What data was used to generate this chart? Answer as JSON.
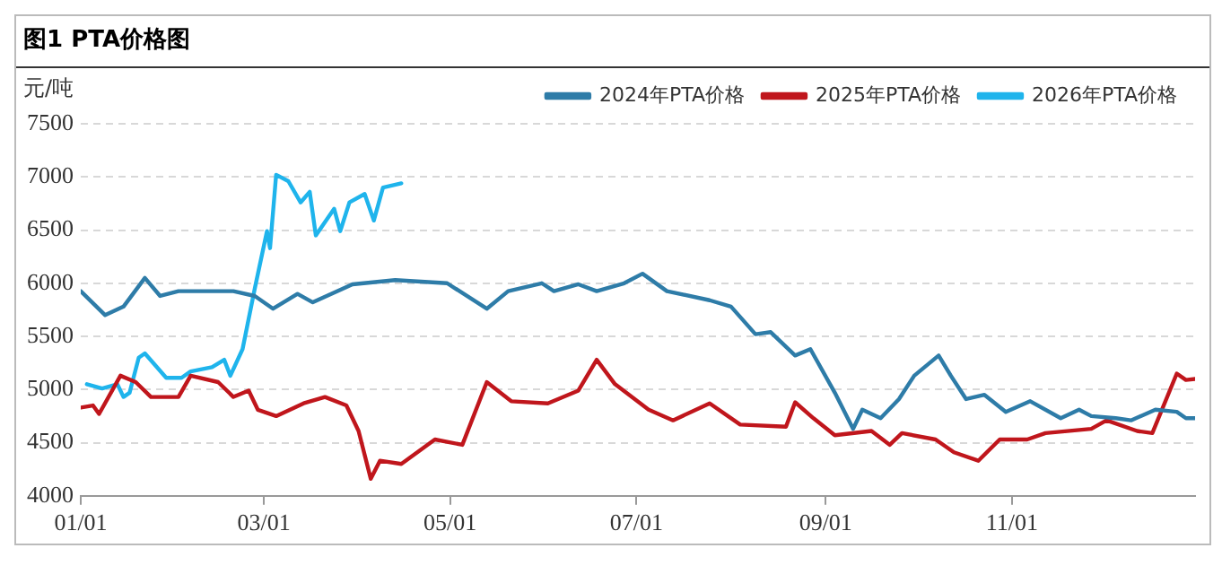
{
  "chart_data": {
    "type": "line",
    "title": "图1 PTA价格图",
    "ylabel": "元/吨",
    "xlim": [
      "--01-01",
      "--12-31"
    ],
    "xticks": [
      {
        "value": "--01-01",
        "label": "01/01"
      },
      {
        "value": "--03-01",
        "label": "03/01"
      },
      {
        "value": "--05-01",
        "label": "05/01"
      },
      {
        "value": "--07-01",
        "label": "07/01"
      },
      {
        "value": "--09-01",
        "label": "09/01"
      },
      {
        "value": "--11-01",
        "label": "11/01"
      }
    ],
    "ylim": [
      4000,
      7500
    ],
    "yticks": [
      4000,
      4500,
      5000,
      5500,
      6000,
      6500,
      7000,
      7500
    ],
    "grid": "y",
    "legend": "top right",
    "marker": "none",
    "line_style": "solid",
    "series": [
      {
        "name": "2024年PTA价格",
        "color": "#2e7ca8",
        "x": [
          "--01-01",
          "--01-09",
          "--01-15",
          "--01-22",
          "--01-27",
          "--02-02",
          "--02-12",
          "--02-20",
          "--02-27",
          "--03-04",
          "--03-12",
          "--03-17",
          "--03-30",
          "--04-13",
          "--04-30",
          "--05-13",
          "--05-20",
          "--05-31",
          "--06-04",
          "--06-12",
          "--06-18",
          "--06-27",
          "--07-03",
          "--07-11",
          "--07-25",
          "--08-01",
          "--08-09",
          "--08-14",
          "--08-22",
          "--08-27",
          "--09-04",
          "--09-10",
          "--09-13",
          "--09-19",
          "--09-25",
          "--09-30",
          "--10-08",
          "--10-12",
          "--10-17",
          "--10-23",
          "--10-30",
          "--11-07",
          "--11-17",
          "--11-23",
          "--11-27",
          "--12-05",
          "--12-10",
          "--12-18",
          "--12-25",
          "--12-28",
          "--12-31"
        ],
        "values": [
          5925,
          5700,
          5780,
          6050,
          5880,
          5925,
          5925,
          5925,
          5880,
          5760,
          5900,
          5820,
          5990,
          6030,
          6000,
          5760,
          5925,
          6000,
          5925,
          5990,
          5925,
          6000,
          6090,
          5925,
          5840,
          5780,
          5520,
          5540,
          5320,
          5380,
          4970,
          4630,
          4810,
          4730,
          4910,
          5130,
          5320,
          5130,
          4910,
          4950,
          4790,
          4890,
          4730,
          4810,
          4750,
          4730,
          4710,
          4810,
          4790,
          4730,
          4730
        ]
      },
      {
        "name": "2025年PTA价格",
        "color": "#c0161c",
        "x": [
          "--01-01",
          "--01-05",
          "--01-07",
          "--01-14",
          "--01-19",
          "--01-24",
          "--02-02",
          "--02-06",
          "--02-15",
          "--02-20",
          "--02-25",
          "--02-28",
          "--03-05",
          "--03-14",
          "--03-21",
          "--03-28",
          "--04-01",
          "--04-05",
          "--04-08",
          "--04-15",
          "--04-26",
          "--05-05",
          "--05-13",
          "--05-21",
          "--06-02",
          "--06-12",
          "--06-18",
          "--06-24",
          "--07-05",
          "--07-13",
          "--07-25",
          "--08-04",
          "--08-19",
          "--08-22",
          "--08-28",
          "--09-04",
          "--09-16",
          "--09-22",
          "--09-26",
          "--10-07",
          "--10-13",
          "--10-21",
          "--10-28",
          "--11-06",
          "--11-12",
          "--11-27",
          "--12-02",
          "--12-12",
          "--12-17",
          "--12-25",
          "--12-28",
          "--12-31"
        ],
        "values": [
          4830,
          4850,
          4770,
          5130,
          5070,
          4930,
          4930,
          5130,
          5070,
          4930,
          4990,
          4810,
          4750,
          4870,
          4930,
          4850,
          4610,
          4160,
          4330,
          4300,
          4530,
          4480,
          5070,
          4890,
          4870,
          4990,
          5280,
          5050,
          4810,
          4710,
          4870,
          4670,
          4650,
          4880,
          4730,
          4570,
          4610,
          4480,
          4590,
          4530,
          4410,
          4330,
          4530,
          4530,
          4590,
          4630,
          4710,
          4610,
          4590,
          5150,
          5090,
          5100
        ]
      },
      {
        "name": "2026年PTA价格",
        "color": "#1fb4ec",
        "x": [
          "--01-03",
          "--01-08",
          "--01-13",
          "--01-15",
          "--01-17",
          "--01-20",
          "--01-22",
          "--01-29",
          "--02-03",
          "--02-06",
          "--02-13",
          "--02-17",
          "--02-19",
          "--02-23",
          "--02-27",
          "--03-02",
          "--03-03",
          "--03-05",
          "--03-09",
          "--03-13",
          "--03-16",
          "--03-18",
          "--03-24",
          "--03-26",
          "--03-29",
          "--04-03",
          "--04-06",
          "--04-09",
          "--04-15"
        ],
        "values": [
          5050,
          5010,
          5050,
          4930,
          4970,
          5300,
          5340,
          5110,
          5110,
          5170,
          5210,
          5280,
          5130,
          5380,
          5950,
          6490,
          6330,
          7020,
          6960,
          6760,
          6860,
          6450,
          6700,
          6490,
          6760,
          6840,
          6590,
          6900,
          6940
        ]
      }
    ]
  }
}
